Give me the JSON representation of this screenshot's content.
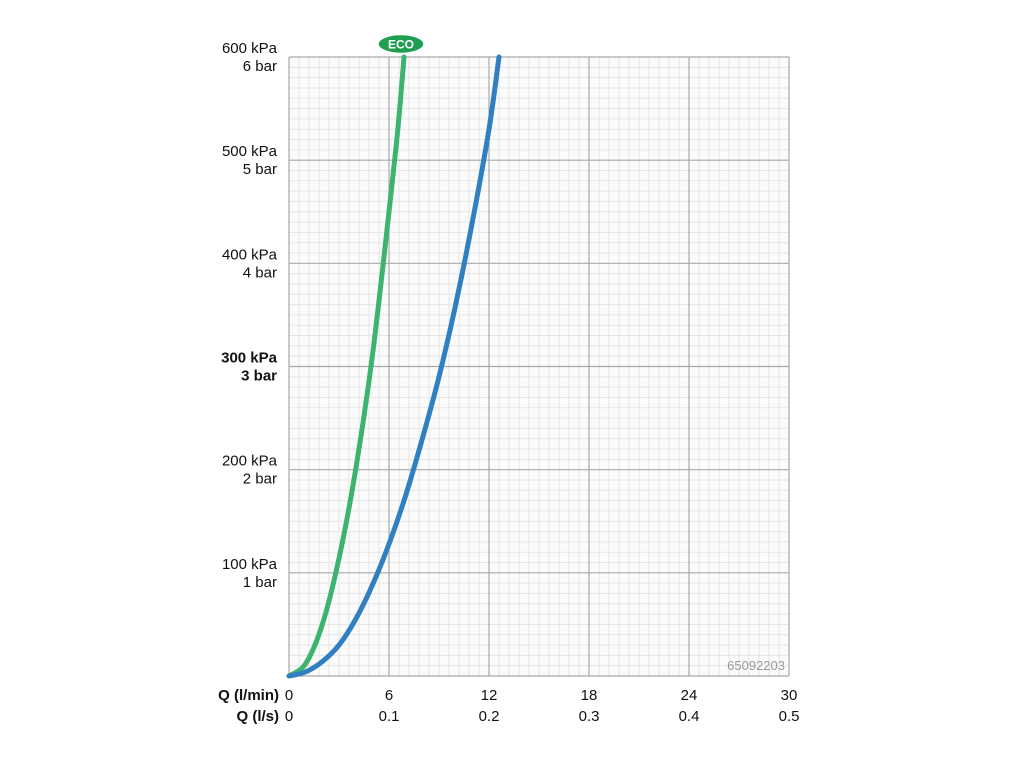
{
  "chart_data": {
    "type": "line",
    "id_label": "65092203",
    "badge": "ECO",
    "x_primary": {
      "label": "Q (l/min)",
      "ticks": [
        0,
        6,
        12,
        18,
        24,
        30
      ],
      "tick_labels": [
        "0",
        "6",
        "12",
        "18",
        "24",
        "30"
      ],
      "range": [
        0,
        30
      ]
    },
    "x_secondary": {
      "label": "Q (l/s)",
      "tick_labels": [
        "0",
        "0.1",
        "0.2",
        "0.3",
        "0.4",
        "0.5"
      ]
    },
    "y": {
      "range": [
        0,
        600
      ],
      "ticks": [
        {
          "value": 100,
          "kpa": "100 kPa",
          "bar": "1 bar",
          "bold": false
        },
        {
          "value": 200,
          "kpa": "200 kPa",
          "bar": "2 bar",
          "bold": false
        },
        {
          "value": 300,
          "kpa": "300 kPa",
          "bar": "3 bar",
          "bold": true
        },
        {
          "value": 400,
          "kpa": "400 kPa",
          "bar": "4 bar",
          "bold": false
        },
        {
          "value": 500,
          "kpa": "500 kPa",
          "bar": "5 bar",
          "bold": false
        },
        {
          "value": 600,
          "kpa": "600 kPa",
          "bar": "6 bar",
          "bold": false
        }
      ]
    },
    "grid": true,
    "series": [
      {
        "color": "#3cb46e",
        "x": [
          0,
          1,
          2,
          3,
          4,
          5,
          6,
          6.5,
          6.8,
          6.9
        ],
        "y": [
          0,
          12,
          50,
          114,
          200,
          310,
          450,
          525,
          580,
          600
        ]
      },
      {
        "color": "#2f7fc1",
        "x": [
          0,
          1,
          2,
          3,
          4,
          5,
          6,
          7,
          8,
          9,
          10,
          11,
          12,
          12.6
        ],
        "y": [
          0,
          4,
          14,
          30,
          55,
          88,
          128,
          175,
          230,
          290,
          360,
          440,
          530,
          600
        ]
      }
    ]
  }
}
